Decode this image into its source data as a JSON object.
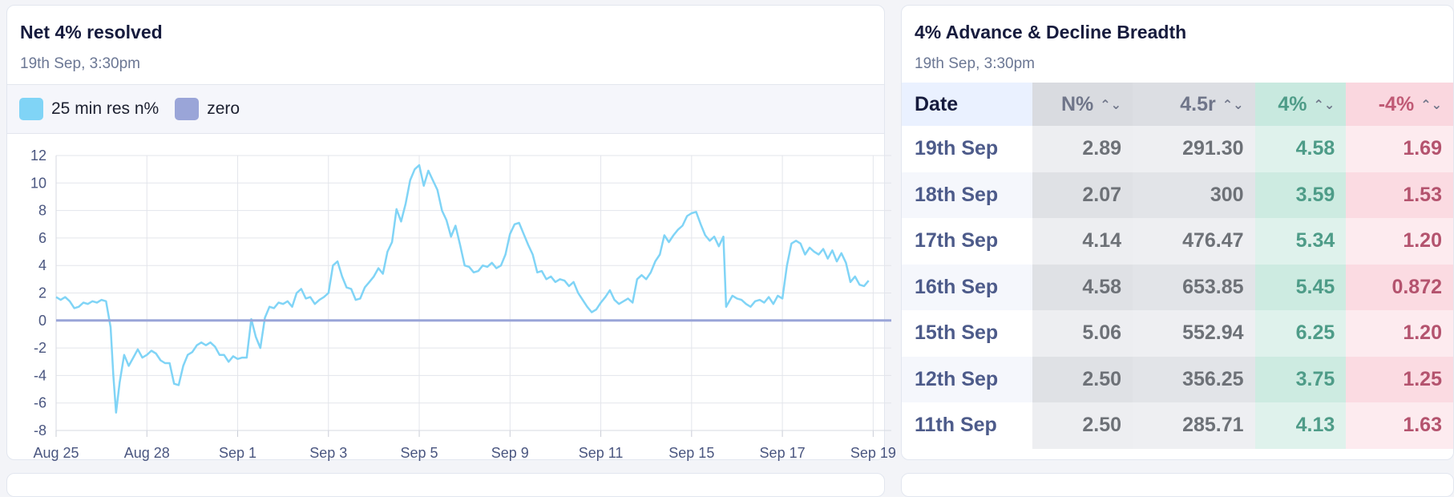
{
  "chart_panel": {
    "title": "Net 4% resolved",
    "timestamp": "19th Sep, 3:30pm",
    "legend": [
      {
        "label": "25 min res n%",
        "color": "#80d4f6"
      },
      {
        "label": "zero",
        "color": "#9aa5d8"
      }
    ]
  },
  "table_panel": {
    "title": "4% Advance & Decline Breadth",
    "timestamp": "19th Sep, 3:30pm",
    "columns": [
      "Date",
      "N%",
      "4.5r",
      "4%",
      "-4%"
    ],
    "rows": [
      {
        "date": "19th Sep",
        "n": "2.89",
        "r": "291.30",
        "adv": "4.58",
        "dec": "1.69"
      },
      {
        "date": "18th Sep",
        "n": "2.07",
        "r": "300",
        "adv": "3.59",
        "dec": "1.53"
      },
      {
        "date": "17th Sep",
        "n": "4.14",
        "r": "476.47",
        "adv": "5.34",
        "dec": "1.20"
      },
      {
        "date": "16th Sep",
        "n": "4.58",
        "r": "653.85",
        "adv": "5.45",
        "dec": "0.872"
      },
      {
        "date": "15th Sep",
        "n": "5.06",
        "r": "552.94",
        "adv": "6.25",
        "dec": "1.20"
      },
      {
        "date": "12th Sep",
        "n": "2.50",
        "r": "356.25",
        "adv": "3.75",
        "dec": "1.25"
      },
      {
        "date": "11th Sep",
        "n": "2.50",
        "r": "285.71",
        "adv": "4.13",
        "dec": "1.63"
      }
    ]
  },
  "chart_data": {
    "type": "line",
    "title": "Net 4% resolved",
    "x_tick_labels": [
      "Aug 25",
      "Aug 28",
      "Sep 1",
      "Sep 3",
      "Sep 5",
      "Sep 9",
      "Sep 11",
      "Sep 15",
      "Sep 17",
      "Sep 19"
    ],
    "y_ticks": [
      12,
      10,
      8,
      6,
      4,
      2,
      0,
      -2,
      -4,
      -6,
      -8
    ],
    "ylim": [
      -8,
      12
    ],
    "xlim": [
      0,
      9.2
    ],
    "grid": true,
    "legend_position": "top",
    "series": [
      {
        "name": "25 min res n%",
        "color": "#80d4f6",
        "points": [
          [
            0.0,
            1.7
          ],
          [
            0.05,
            1.5
          ],
          [
            0.1,
            1.7
          ],
          [
            0.15,
            1.4
          ],
          [
            0.2,
            0.9
          ],
          [
            0.25,
            1.0
          ],
          [
            0.3,
            1.3
          ],
          [
            0.35,
            1.2
          ],
          [
            0.4,
            1.4
          ],
          [
            0.45,
            1.3
          ],
          [
            0.5,
            1.5
          ],
          [
            0.55,
            1.4
          ],
          [
            0.6,
            -0.5
          ],
          [
            0.63,
            -4.0
          ],
          [
            0.66,
            -6.7
          ],
          [
            0.7,
            -4.5
          ],
          [
            0.75,
            -2.5
          ],
          [
            0.8,
            -3.3
          ],
          [
            0.85,
            -2.7
          ],
          [
            0.9,
            -2.1
          ],
          [
            0.95,
            -2.7
          ],
          [
            1.0,
            -2.5
          ],
          [
            1.05,
            -2.2
          ],
          [
            1.1,
            -2.4
          ],
          [
            1.15,
            -2.9
          ],
          [
            1.2,
            -3.1
          ],
          [
            1.25,
            -3.1
          ],
          [
            1.3,
            -4.6
          ],
          [
            1.35,
            -4.7
          ],
          [
            1.4,
            -3.3
          ],
          [
            1.45,
            -2.5
          ],
          [
            1.5,
            -2.3
          ],
          [
            1.55,
            -1.8
          ],
          [
            1.6,
            -1.6
          ],
          [
            1.65,
            -1.8
          ],
          [
            1.7,
            -1.6
          ],
          [
            1.75,
            -1.9
          ],
          [
            1.8,
            -2.5
          ],
          [
            1.85,
            -2.5
          ],
          [
            1.9,
            -3.0
          ],
          [
            1.95,
            -2.6
          ],
          [
            2.0,
            -2.8
          ],
          [
            2.05,
            -2.7
          ],
          [
            2.1,
            -2.7
          ],
          [
            2.15,
            0.1
          ],
          [
            2.2,
            -1.2
          ],
          [
            2.25,
            -2.0
          ],
          [
            2.3,
            0.2
          ],
          [
            2.35,
            1.0
          ],
          [
            2.4,
            0.9
          ],
          [
            2.45,
            1.3
          ],
          [
            2.5,
            1.2
          ],
          [
            2.55,
            1.4
          ],
          [
            2.6,
            1.0
          ],
          [
            2.65,
            2.0
          ],
          [
            2.7,
            2.3
          ],
          [
            2.75,
            1.6
          ],
          [
            2.8,
            1.7
          ],
          [
            2.85,
            1.2
          ],
          [
            2.9,
            1.5
          ],
          [
            2.95,
            1.7
          ],
          [
            3.0,
            2.0
          ],
          [
            3.05,
            4.0
          ],
          [
            3.1,
            4.3
          ],
          [
            3.15,
            3.2
          ],
          [
            3.2,
            2.4
          ],
          [
            3.25,
            2.3
          ],
          [
            3.3,
            1.5
          ],
          [
            3.35,
            1.6
          ],
          [
            3.4,
            2.4
          ],
          [
            3.45,
            2.8
          ],
          [
            3.5,
            3.2
          ],
          [
            3.55,
            3.8
          ],
          [
            3.6,
            3.4
          ],
          [
            3.65,
            5.0
          ],
          [
            3.7,
            5.7
          ],
          [
            3.75,
            8.1
          ],
          [
            3.8,
            7.2
          ],
          [
            3.85,
            8.5
          ],
          [
            3.9,
            10.2
          ],
          [
            3.95,
            11.0
          ],
          [
            4.0,
            11.3
          ],
          [
            4.05,
            9.8
          ],
          [
            4.1,
            10.9
          ],
          [
            4.15,
            10.2
          ],
          [
            4.2,
            9.5
          ],
          [
            4.25,
            8.0
          ],
          [
            4.3,
            7.3
          ],
          [
            4.35,
            6.1
          ],
          [
            4.4,
            6.9
          ],
          [
            4.45,
            5.5
          ],
          [
            4.5,
            4.0
          ],
          [
            4.55,
            3.9
          ],
          [
            4.6,
            3.5
          ],
          [
            4.65,
            3.6
          ],
          [
            4.7,
            4.0
          ],
          [
            4.75,
            3.9
          ],
          [
            4.8,
            4.2
          ],
          [
            4.85,
            3.8
          ],
          [
            4.9,
            4.0
          ],
          [
            4.95,
            4.8
          ],
          [
            5.0,
            6.3
          ],
          [
            5.05,
            7.0
          ],
          [
            5.1,
            7.1
          ],
          [
            5.15,
            6.3
          ],
          [
            5.2,
            5.5
          ],
          [
            5.25,
            4.8
          ],
          [
            5.3,
            3.5
          ],
          [
            5.35,
            3.6
          ],
          [
            5.4,
            3.0
          ],
          [
            5.45,
            3.2
          ],
          [
            5.5,
            2.8
          ],
          [
            5.55,
            3.0
          ],
          [
            5.6,
            2.9
          ],
          [
            5.65,
            2.5
          ],
          [
            5.7,
            2.8
          ],
          [
            5.75,
            2.0
          ],
          [
            5.8,
            1.5
          ],
          [
            5.85,
            1.0
          ],
          [
            5.9,
            0.6
          ],
          [
            5.95,
            0.8
          ],
          [
            6.0,
            1.3
          ],
          [
            6.05,
            1.7
          ],
          [
            6.1,
            2.2
          ],
          [
            6.15,
            1.5
          ],
          [
            6.2,
            1.2
          ],
          [
            6.25,
            1.4
          ],
          [
            6.3,
            1.6
          ],
          [
            6.35,
            1.3
          ],
          [
            6.4,
            3.0
          ],
          [
            6.45,
            3.3
          ],
          [
            6.5,
            3.0
          ],
          [
            6.55,
            3.5
          ],
          [
            6.6,
            4.3
          ],
          [
            6.65,
            4.8
          ],
          [
            6.7,
            6.2
          ],
          [
            6.75,
            5.7
          ],
          [
            6.8,
            6.2
          ],
          [
            6.85,
            6.6
          ],
          [
            6.9,
            6.9
          ],
          [
            6.95,
            7.6
          ],
          [
            7.0,
            7.8
          ],
          [
            7.05,
            7.9
          ],
          [
            7.1,
            7.0
          ],
          [
            7.15,
            6.2
          ],
          [
            7.2,
            5.8
          ],
          [
            7.25,
            6.1
          ],
          [
            7.3,
            5.4
          ],
          [
            7.35,
            6.1
          ],
          [
            7.38,
            1.0
          ],
          [
            7.45,
            1.8
          ],
          [
            7.5,
            1.6
          ],
          [
            7.55,
            1.5
          ],
          [
            7.6,
            1.2
          ],
          [
            7.65,
            1.0
          ],
          [
            7.7,
            1.4
          ],
          [
            7.75,
            1.5
          ],
          [
            7.8,
            1.3
          ],
          [
            7.85,
            1.7
          ],
          [
            7.9,
            1.2
          ],
          [
            7.95,
            1.8
          ],
          [
            8.0,
            1.6
          ],
          [
            8.05,
            4.0
          ],
          [
            8.1,
            5.6
          ],
          [
            8.15,
            5.8
          ],
          [
            8.2,
            5.6
          ],
          [
            8.25,
            4.8
          ],
          [
            8.3,
            5.3
          ],
          [
            8.35,
            5.0
          ],
          [
            8.4,
            4.8
          ],
          [
            8.45,
            5.2
          ],
          [
            8.5,
            4.5
          ],
          [
            8.55,
            5.1
          ],
          [
            8.6,
            4.3
          ],
          [
            8.65,
            4.9
          ],
          [
            8.7,
            4.2
          ],
          [
            8.75,
            2.8
          ],
          [
            8.8,
            3.2
          ],
          [
            8.85,
            2.6
          ],
          [
            8.9,
            2.5
          ],
          [
            8.95,
            2.9
          ]
        ]
      },
      {
        "name": "zero",
        "color": "#9aa5d8",
        "points": [
          [
            0.0,
            0
          ],
          [
            9.2,
            0
          ]
        ]
      }
    ]
  }
}
